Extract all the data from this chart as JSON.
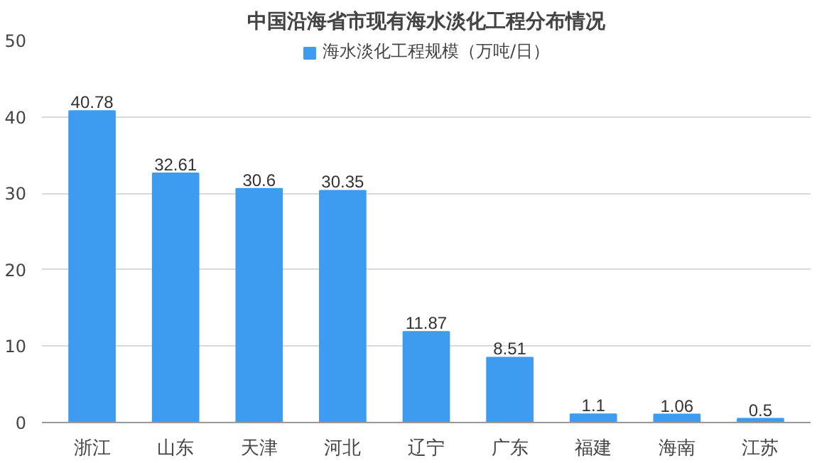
{
  "chart_data": {
    "type": "bar",
    "title": "中国沿海省市现有海水淡化工程分布情况",
    "categories": [
      "浙江",
      "山东",
      "天津",
      "河北",
      "辽宁",
      "广东",
      "福建",
      "海南",
      "江苏"
    ],
    "series": [
      {
        "name": "海水淡化工程规模（万吨/日）",
        "color": "#3d9bf0",
        "values": [
          40.78,
          32.61,
          30.6,
          30.35,
          11.87,
          8.51,
          1.1,
          1.06,
          0.5
        ]
      }
    ],
    "ylim": [
      0,
      50
    ],
    "yticks": [
      0,
      10,
      20,
      30,
      40,
      50
    ],
    "grid": "y",
    "legend": "top",
    "data_labels": true
  }
}
